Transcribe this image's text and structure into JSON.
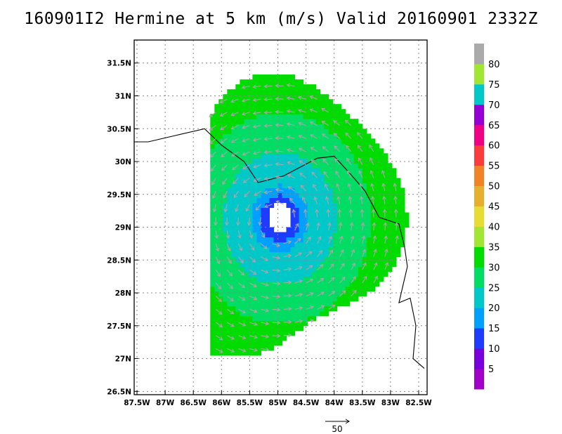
{
  "chart_data": {
    "type": "heatmap",
    "title": "160901I2 Hermine at 5 km (m/s) Valid 20160901  2332Z",
    "x_ticks": [
      "87.5W",
      "87W",
      "86.5W",
      "86W",
      "85.5W",
      "85W",
      "84.5W",
      "84W",
      "83.5W",
      "83W",
      "82.5W"
    ],
    "x_values": [
      -87.5,
      -87,
      -86.5,
      -86,
      -85.5,
      -85,
      -84.5,
      -84,
      -83.5,
      -83,
      -82.5
    ],
    "y_ticks": [
      "26.5N",
      "27N",
      "27.5N",
      "28N",
      "28.5N",
      "29N",
      "29.5N",
      "30N",
      "30.5N",
      "31N",
      "31.5N"
    ],
    "y_values": [
      26.5,
      27,
      27.5,
      28,
      28.5,
      29,
      29.5,
      30,
      30.5,
      31,
      31.5
    ],
    "xlim": [
      -87.55,
      -82.35
    ],
    "ylim": [
      26.45,
      31.85
    ],
    "grid": true,
    "storm_center": {
      "lon": -85.0,
      "lat": 29.1
    },
    "colorbar": {
      "labels": [
        "5",
        "10",
        "15",
        "20",
        "25",
        "30",
        "35",
        "40",
        "45",
        "50",
        "55",
        "60",
        "65",
        "70",
        "75",
        "80"
      ],
      "colors": [
        "#a000c8",
        "#7800dc",
        "#1e3cff",
        "#00a0ff",
        "#00c8c8",
        "#00dc64",
        "#00dc00",
        "#a0e632",
        "#e6dc32",
        "#e6af2d",
        "#f08228",
        "#fa3c3c",
        "#f00082",
        "#9400d3",
        "#00c8c8",
        "#a0e632",
        "#aaaaaa"
      ]
    },
    "wind_speed_bins": [
      {
        "r_max": 0.22,
        "value": null
      },
      {
        "r_max": 0.35,
        "value": 10
      },
      {
        "r_max": 0.5,
        "value": 15
      },
      {
        "r_max": 1.0,
        "value": 20
      },
      {
        "r_max": 1.6,
        "value": 25
      },
      {
        "r_max": 2.4,
        "value": 30
      }
    ],
    "reference_vector": {
      "label": "50",
      "speed": 50
    }
  }
}
